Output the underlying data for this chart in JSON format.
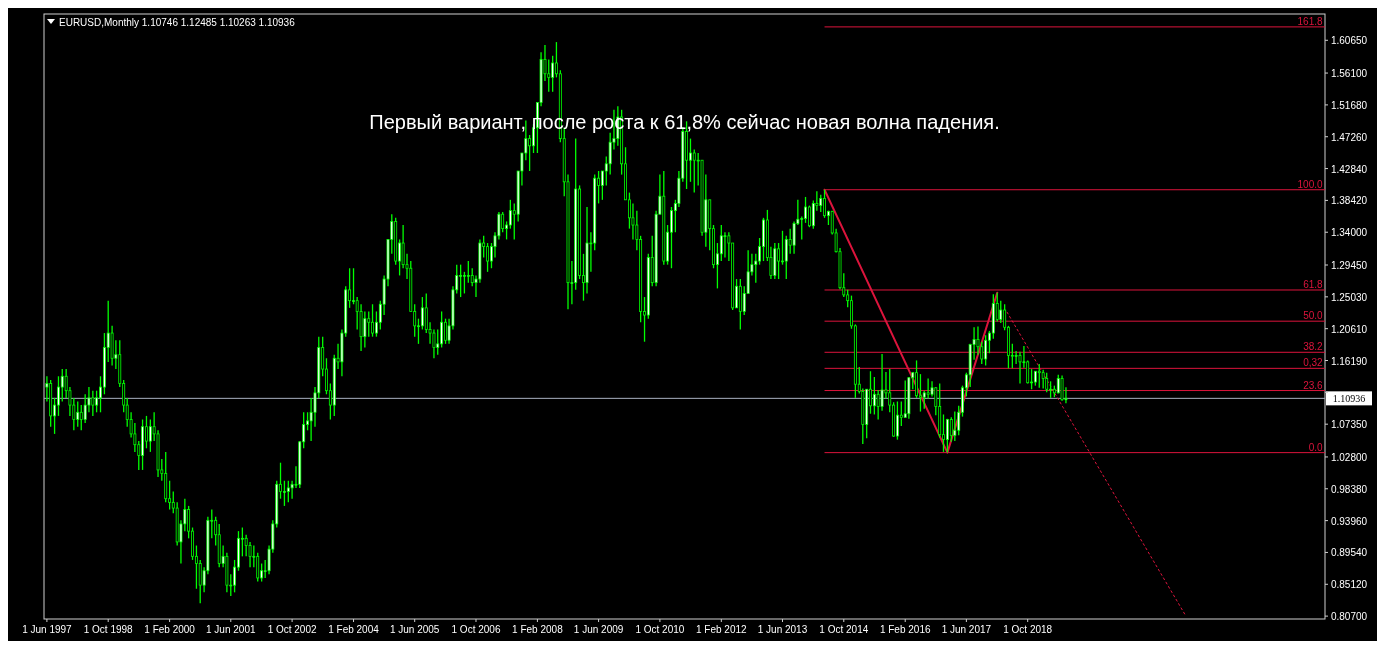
{
  "chart_data": {
    "type": "candlestick",
    "title": "EURUSD,Monthly  1.10746 1.12485 1.10263 1.10936",
    "annotations": [
      "Первый вариант, после роста к 61,8% сейчас новая волна падения.",
      {
        "text": "161.8",
        "x": "2025-03",
        "y": 1.6251
      },
      {
        "text": "100.0",
        "x": "2025-03",
        "y": 1.399
      },
      {
        "text": "61.8",
        "x": "2025-03",
        "y": 1.2598
      },
      {
        "text": "50.0",
        "x": "2025-03",
        "y": 1.2165
      },
      {
        "text": "38.2",
        "x": "2025-03",
        "y": 1.1733
      },
      {
        "text": "0,32",
        "x": "2025-03",
        "y": 1.151
      },
      {
        "text": "23.6",
        "x": "2025-03",
        "y": 1.1202
      },
      {
        "text": "0.0",
        "x": "2025-03",
        "y": 1.034
      }
    ],
    "color": "#00ff00",
    "x": [
      "1997-06",
      "1997-07",
      "1997-08",
      "1997-09",
      "1997-10",
      "1997-11",
      "1997-12",
      "1998-01",
      "1998-02",
      "1998-03",
      "1998-04",
      "1998-05",
      "1998-06",
      "1998-07",
      "1998-08",
      "1998-09",
      "1998-10",
      "1998-11",
      "1998-12",
      "1999-01",
      "1999-02",
      "1999-03",
      "1999-04",
      "1999-05",
      "1999-06",
      "1999-07",
      "1999-08",
      "1999-09",
      "1999-10",
      "1999-11",
      "1999-12",
      "2000-01",
      "2000-02",
      "2000-03",
      "2000-04",
      "2000-05",
      "2000-06",
      "2000-07",
      "2000-08",
      "2000-09",
      "2000-10",
      "2000-11",
      "2000-12",
      "2001-01",
      "2001-02",
      "2001-03",
      "2001-04",
      "2001-05",
      "2001-06",
      "2001-07",
      "2001-08",
      "2001-09",
      "2001-10",
      "2001-11",
      "2001-12",
      "2002-01",
      "2002-02",
      "2002-03",
      "2002-04",
      "2002-05",
      "2002-06",
      "2002-07",
      "2002-08",
      "2002-09",
      "2002-10",
      "2002-11",
      "2002-12",
      "2003-01",
      "2003-02",
      "2003-03",
      "2003-04",
      "2003-05",
      "2003-06",
      "2003-07",
      "2003-08",
      "2003-09",
      "2003-10",
      "2003-11",
      "2003-12",
      "2004-01",
      "2004-02",
      "2004-03",
      "2004-04",
      "2004-05",
      "2004-06",
      "2004-07",
      "2004-08",
      "2004-09",
      "2004-10",
      "2004-11",
      "2004-12",
      "2005-01",
      "2005-02",
      "2005-03",
      "2005-04",
      "2005-05",
      "2005-06",
      "2005-07",
      "2005-08",
      "2005-09",
      "2005-10",
      "2005-11",
      "2005-12",
      "2006-01",
      "2006-02",
      "2006-03",
      "2006-04",
      "2006-05",
      "2006-06",
      "2006-07",
      "2006-08",
      "2006-09",
      "2006-10",
      "2006-11",
      "2006-12",
      "2007-01",
      "2007-02",
      "2007-03",
      "2007-04",
      "2007-05",
      "2007-06",
      "2007-07",
      "2007-08",
      "2007-09",
      "2007-10",
      "2007-11",
      "2007-12",
      "2008-01",
      "2008-02",
      "2008-03",
      "2008-04",
      "2008-05",
      "2008-06",
      "2008-07",
      "2008-08",
      "2008-09",
      "2008-10",
      "2008-11",
      "2008-12",
      "2009-01",
      "2009-02",
      "2009-03",
      "2009-04",
      "2009-05",
      "2009-06",
      "2009-07",
      "2009-08",
      "2009-09",
      "2009-10",
      "2009-11",
      "2009-12",
      "2010-01",
      "2010-02",
      "2010-03",
      "2010-04",
      "2010-05",
      "2010-06",
      "2010-07",
      "2010-08",
      "2010-09",
      "2010-10",
      "2010-11",
      "2010-12",
      "2011-01",
      "2011-02",
      "2011-03",
      "2011-04",
      "2011-05",
      "2011-06",
      "2011-07",
      "2011-08",
      "2011-09",
      "2011-10",
      "2011-11",
      "2011-12",
      "2012-01",
      "2012-02",
      "2012-03",
      "2012-04",
      "2012-05",
      "2012-06",
      "2012-07",
      "2012-08",
      "2012-09",
      "2012-10",
      "2012-11",
      "2012-12",
      "2013-01",
      "2013-02",
      "2013-03",
      "2013-04",
      "2013-05",
      "2013-06",
      "2013-07",
      "2013-08",
      "2013-09",
      "2013-10",
      "2013-11",
      "2013-12",
      "2014-01",
      "2014-02",
      "2014-03",
      "2014-04",
      "2014-05",
      "2014-06",
      "2014-07",
      "2014-08",
      "2014-09",
      "2014-10",
      "2014-11",
      "2014-12",
      "2015-01",
      "2015-02",
      "2015-03",
      "2015-04",
      "2015-05",
      "2015-06",
      "2015-07",
      "2015-08",
      "2015-09",
      "2015-10",
      "2015-11",
      "2015-12",
      "2016-01",
      "2016-02",
      "2016-03",
      "2016-04",
      "2016-05",
      "2016-06",
      "2016-07",
      "2016-08",
      "2016-09",
      "2016-10",
      "2016-11",
      "2016-12",
      "2017-01",
      "2017-02",
      "2017-03",
      "2017-04",
      "2017-05",
      "2017-06",
      "2017-07",
      "2017-08",
      "2017-09",
      "2017-10",
      "2017-11",
      "2017-12",
      "2018-01",
      "2018-02",
      "2018-03",
      "2018-04",
      "2018-05",
      "2018-06",
      "2018-07",
      "2018-08",
      "2018-09",
      "2018-10",
      "2018-11",
      "2018-12",
      "2019-01",
      "2019-02",
      "2019-03",
      "2019-04",
      "2019-05",
      "2019-06",
      "2019-07",
      "2019-08"
    ],
    "ohlc": [
      [
        1.125,
        1.14,
        1.105,
        1.13
      ],
      [
        1.13,
        1.135,
        1.07,
        1.085
      ],
      [
        1.085,
        1.11,
        1.06,
        1.1
      ],
      [
        1.1,
        1.14,
        1.085,
        1.125
      ],
      [
        1.125,
        1.15,
        1.105,
        1.14
      ],
      [
        1.14,
        1.15,
        1.11,
        1.12
      ],
      [
        1.12,
        1.125,
        1.085,
        1.1
      ],
      [
        1.1,
        1.11,
        1.065,
        1.08
      ],
      [
        1.08,
        1.105,
        1.07,
        1.09
      ],
      [
        1.09,
        1.1,
        1.065,
        1.08
      ],
      [
        1.08,
        1.115,
        1.075,
        1.1
      ],
      [
        1.1,
        1.125,
        1.09,
        1.11
      ],
      [
        1.11,
        1.12,
        1.085,
        1.1
      ],
      [
        1.1,
        1.12,
        1.09,
        1.11
      ],
      [
        1.11,
        1.14,
        1.09,
        1.125
      ],
      [
        1.125,
        1.2,
        1.115,
        1.18
      ],
      [
        1.18,
        1.245,
        1.16,
        1.2
      ],
      [
        1.2,
        1.21,
        1.155,
        1.165
      ],
      [
        1.165,
        1.19,
        1.15,
        1.17
      ],
      [
        1.17,
        1.19,
        1.125,
        1.13
      ],
      [
        1.13,
        1.135,
        1.09,
        1.1
      ],
      [
        1.1,
        1.11,
        1.07,
        1.08
      ],
      [
        1.08,
        1.09,
        1.055,
        1.06
      ],
      [
        1.06,
        1.075,
        1.035,
        1.045
      ],
      [
        1.045,
        1.05,
        1.01,
        1.03
      ],
      [
        1.03,
        1.08,
        1.01,
        1.07
      ],
      [
        1.07,
        1.085,
        1.04,
        1.05
      ],
      [
        1.05,
        1.08,
        1.035,
        1.07
      ],
      [
        1.07,
        1.09,
        1.05,
        1.06
      ],
      [
        1.06,
        1.065,
        1.0,
        1.01
      ],
      [
        1.01,
        1.025,
        0.995,
        1.005
      ],
      [
        1.005,
        1.035,
        0.965,
        0.97
      ],
      [
        0.97,
        0.995,
        0.955,
        0.965
      ],
      [
        0.965,
        0.98,
        0.95,
        0.957
      ],
      [
        0.957,
        0.965,
        0.905,
        0.91
      ],
      [
        0.91,
        0.94,
        0.88,
        0.935
      ],
      [
        0.935,
        0.97,
        0.925,
        0.955
      ],
      [
        0.955,
        0.96,
        0.915,
        0.925
      ],
      [
        0.925,
        0.93,
        0.885,
        0.89
      ],
      [
        0.89,
        0.905,
        0.845,
        0.88
      ],
      [
        0.88,
        0.885,
        0.825,
        0.85
      ],
      [
        0.85,
        0.875,
        0.84,
        0.87
      ],
      [
        0.87,
        0.945,
        0.865,
        0.94
      ],
      [
        0.94,
        0.955,
        0.915,
        0.94
      ],
      [
        0.94,
        0.945,
        0.905,
        0.92
      ],
      [
        0.92,
        0.935,
        0.875,
        0.88
      ],
      [
        0.88,
        0.905,
        0.875,
        0.89
      ],
      [
        0.89,
        0.895,
        0.84,
        0.85
      ],
      [
        0.85,
        0.865,
        0.835,
        0.85
      ],
      [
        0.85,
        0.885,
        0.84,
        0.875
      ],
      [
        0.875,
        0.925,
        0.87,
        0.915
      ],
      [
        0.915,
        0.93,
        0.89,
        0.915
      ],
      [
        0.915,
        0.92,
        0.89,
        0.905
      ],
      [
        0.905,
        0.91,
        0.875,
        0.89
      ],
      [
        0.89,
        0.905,
        0.875,
        0.89
      ],
      [
        0.89,
        0.895,
        0.855,
        0.86
      ],
      [
        0.86,
        0.88,
        0.855,
        0.87
      ],
      [
        0.87,
        0.885,
        0.86,
        0.87
      ],
      [
        0.87,
        0.905,
        0.865,
        0.9
      ],
      [
        0.9,
        0.94,
        0.895,
        0.935
      ],
      [
        0.935,
        0.995,
        0.93,
        0.99
      ],
      [
        0.99,
        1.02,
        0.97,
        0.98
      ],
      [
        0.98,
        0.995,
        0.96,
        0.98
      ],
      [
        0.98,
        0.995,
        0.965,
        0.985
      ],
      [
        0.985,
        0.995,
        0.97,
        0.99
      ],
      [
        0.99,
        1.015,
        0.985,
        0.99
      ],
      [
        0.99,
        1.05,
        0.985,
        1.049
      ],
      [
        1.049,
        1.09,
        1.04,
        1.073
      ],
      [
        1.073,
        1.09,
        1.065,
        1.078
      ],
      [
        1.078,
        1.11,
        1.05,
        1.09
      ],
      [
        1.09,
        1.125,
        1.07,
        1.117
      ],
      [
        1.117,
        1.195,
        1.11,
        1.18
      ],
      [
        1.18,
        1.195,
        1.14,
        1.15
      ],
      [
        1.15,
        1.165,
        1.115,
        1.12
      ],
      [
        1.12,
        1.13,
        1.08,
        1.1
      ],
      [
        1.1,
        1.17,
        1.085,
        1.165
      ],
      [
        1.165,
        1.185,
        1.15,
        1.16
      ],
      [
        1.16,
        1.205,
        1.14,
        1.2
      ],
      [
        1.2,
        1.265,
        1.195,
        1.26
      ],
      [
        1.26,
        1.29,
        1.235,
        1.245
      ],
      [
        1.245,
        1.29,
        1.24,
        1.245
      ],
      [
        1.245,
        1.25,
        1.205,
        1.23
      ],
      [
        1.23,
        1.24,
        1.175,
        1.195
      ],
      [
        1.195,
        1.23,
        1.18,
        1.22
      ],
      [
        1.22,
        1.23,
        1.195,
        1.215
      ],
      [
        1.215,
        1.24,
        1.195,
        1.2
      ],
      [
        1.2,
        1.23,
        1.195,
        1.215
      ],
      [
        1.215,
        1.245,
        1.205,
        1.24
      ],
      [
        1.24,
        1.28,
        1.225,
        1.275
      ],
      [
        1.275,
        1.33,
        1.265,
        1.33
      ],
      [
        1.33,
        1.365,
        1.31,
        1.355
      ],
      [
        1.355,
        1.36,
        1.295,
        1.3
      ],
      [
        1.3,
        1.33,
        1.28,
        1.325
      ],
      [
        1.325,
        1.35,
        1.29,
        1.295
      ],
      [
        1.295,
        1.31,
        1.275,
        1.29
      ],
      [
        1.29,
        1.3,
        1.23,
        1.23
      ],
      [
        1.23,
        1.24,
        1.195,
        1.21
      ],
      [
        1.21,
        1.22,
        1.185,
        1.21
      ],
      [
        1.21,
        1.25,
        1.205,
        1.235
      ],
      [
        1.235,
        1.255,
        1.2,
        1.205
      ],
      [
        1.205,
        1.215,
        1.185,
        1.2
      ],
      [
        1.2,
        1.205,
        1.165,
        1.18
      ],
      [
        1.18,
        1.205,
        1.17,
        1.185
      ],
      [
        1.185,
        1.23,
        1.18,
        1.215
      ],
      [
        1.215,
        1.22,
        1.185,
        1.19
      ],
      [
        1.19,
        1.22,
        1.185,
        1.21
      ],
      [
        1.21,
        1.265,
        1.205,
        1.26
      ],
      [
        1.26,
        1.295,
        1.255,
        1.28
      ],
      [
        1.28,
        1.295,
        1.25,
        1.28
      ],
      [
        1.28,
        1.285,
        1.255,
        1.28
      ],
      [
        1.28,
        1.3,
        1.27,
        1.28
      ],
      [
        1.28,
        1.29,
        1.265,
        1.27
      ],
      [
        1.27,
        1.28,
        1.25,
        1.275
      ],
      [
        1.275,
        1.33,
        1.27,
        1.325
      ],
      [
        1.325,
        1.335,
        1.305,
        1.32
      ],
      [
        1.32,
        1.325,
        1.285,
        1.3
      ],
      [
        1.3,
        1.325,
        1.29,
        1.32
      ],
      [
        1.32,
        1.34,
        1.305,
        1.335
      ],
      [
        1.335,
        1.368,
        1.33,
        1.365
      ],
      [
        1.365,
        1.368,
        1.34,
        1.345
      ],
      [
        1.345,
        1.355,
        1.33,
        1.35
      ],
      [
        1.35,
        1.385,
        1.345,
        1.37
      ],
      [
        1.37,
        1.38,
        1.33,
        1.365
      ],
      [
        1.365,
        1.425,
        1.355,
        1.425
      ],
      [
        1.425,
        1.45,
        1.405,
        1.45
      ],
      [
        1.45,
        1.495,
        1.44,
        1.47
      ],
      [
        1.47,
        1.475,
        1.425,
        1.46
      ],
      [
        1.46,
        1.49,
        1.45,
        1.485
      ],
      [
        1.485,
        1.52,
        1.45,
        1.52
      ],
      [
        1.52,
        1.59,
        1.515,
        1.58
      ],
      [
        1.58,
        1.6,
        1.55,
        1.56
      ],
      [
        1.56,
        1.58,
        1.535,
        1.555
      ],
      [
        1.555,
        1.585,
        1.535,
        1.575
      ],
      [
        1.575,
        1.604,
        1.555,
        1.56
      ],
      [
        1.56,
        1.565,
        1.465,
        1.47
      ],
      [
        1.47,
        1.485,
        1.39,
        1.41
      ],
      [
        1.41,
        1.42,
        1.233,
        1.27
      ],
      [
        1.27,
        1.3,
        1.24,
        1.27
      ],
      [
        1.27,
        1.47,
        1.26,
        1.4
      ],
      [
        1.4,
        1.405,
        1.275,
        1.28
      ],
      [
        1.28,
        1.31,
        1.245,
        1.27
      ],
      [
        1.27,
        1.375,
        1.255,
        1.325
      ],
      [
        1.325,
        1.34,
        1.285,
        1.325
      ],
      [
        1.325,
        1.42,
        1.315,
        1.415
      ],
      [
        1.415,
        1.425,
        1.38,
        1.405
      ],
      [
        1.405,
        1.425,
        1.385,
        1.425
      ],
      [
        1.425,
        1.445,
        1.405,
        1.435
      ],
      [
        1.435,
        1.478,
        1.42,
        1.465
      ],
      [
        1.465,
        1.51,
        1.455,
        1.47
      ],
      [
        1.47,
        1.515,
        1.46,
        1.5
      ],
      [
        1.5,
        1.51,
        1.42,
        1.435
      ],
      [
        1.435,
        1.458,
        1.385,
        1.385
      ],
      [
        1.385,
        1.395,
        1.345,
        1.36
      ],
      [
        1.36,
        1.38,
        1.33,
        1.35
      ],
      [
        1.35,
        1.37,
        1.315,
        1.33
      ],
      [
        1.33,
        1.335,
        1.215,
        1.23
      ],
      [
        1.23,
        1.25,
        1.188,
        1.225
      ],
      [
        1.225,
        1.31,
        1.22,
        1.305
      ],
      [
        1.305,
        1.335,
        1.265,
        1.27
      ],
      [
        1.27,
        1.37,
        1.265,
        1.365
      ],
      [
        1.365,
        1.42,
        1.365,
        1.39
      ],
      [
        1.39,
        1.425,
        1.295,
        1.3
      ],
      [
        1.3,
        1.35,
        1.295,
        1.34
      ],
      [
        1.34,
        1.375,
        1.29,
        1.37
      ],
      [
        1.37,
        1.385,
        1.34,
        1.38
      ],
      [
        1.38,
        1.425,
        1.375,
        1.415
      ],
      [
        1.415,
        1.486,
        1.41,
        1.48
      ],
      [
        1.48,
        1.494,
        1.4,
        1.44
      ],
      [
        1.44,
        1.47,
        1.41,
        1.45
      ],
      [
        1.45,
        1.455,
        1.395,
        1.44
      ],
      [
        1.44,
        1.45,
        1.405,
        1.44
      ],
      [
        1.44,
        1.44,
        1.335,
        1.34
      ],
      [
        1.34,
        1.42,
        1.32,
        1.385
      ],
      [
        1.385,
        1.385,
        1.315,
        1.345
      ],
      [
        1.345,
        1.35,
        1.29,
        1.295
      ],
      [
        1.295,
        1.325,
        1.262,
        1.31
      ],
      [
        1.31,
        1.35,
        1.3,
        1.335
      ],
      [
        1.335,
        1.34,
        1.305,
        1.335
      ],
      [
        1.335,
        1.34,
        1.3,
        1.325
      ],
      [
        1.325,
        1.325,
        1.232,
        1.235
      ],
      [
        1.235,
        1.275,
        1.235,
        1.265
      ],
      [
        1.265,
        1.275,
        1.205,
        1.23
      ],
      [
        1.23,
        1.265,
        1.225,
        1.255
      ],
      [
        1.255,
        1.315,
        1.255,
        1.285
      ],
      [
        1.285,
        1.31,
        1.28,
        1.295
      ],
      [
        1.295,
        1.31,
        1.27,
        1.3
      ],
      [
        1.3,
        1.332,
        1.295,
        1.32
      ],
      [
        1.32,
        1.36,
        1.3,
        1.357
      ],
      [
        1.357,
        1.371,
        1.3,
        1.305
      ],
      [
        1.305,
        1.32,
        1.275,
        1.28
      ],
      [
        1.28,
        1.325,
        1.275,
        1.317
      ],
      [
        1.317,
        1.325,
        1.275,
        1.3
      ],
      [
        1.3,
        1.342,
        1.295,
        1.3
      ],
      [
        1.3,
        1.335,
        1.275,
        1.33
      ],
      [
        1.33,
        1.345,
        1.31,
        1.322
      ],
      [
        1.322,
        1.355,
        1.31,
        1.352
      ],
      [
        1.352,
        1.385,
        1.35,
        1.358
      ],
      [
        1.358,
        1.362,
        1.33,
        1.359
      ],
      [
        1.359,
        1.389,
        1.353,
        1.375
      ],
      [
        1.375,
        1.377,
        1.347,
        1.349
      ],
      [
        1.349,
        1.384,
        1.345,
        1.38
      ],
      [
        1.38,
        1.397,
        1.37,
        1.377
      ],
      [
        1.377,
        1.392,
        1.368,
        1.387
      ],
      [
        1.387,
        1.399,
        1.36,
        1.363
      ],
      [
        1.363,
        1.37,
        1.35,
        1.369
      ],
      [
        1.369,
        1.37,
        1.337,
        1.339
      ],
      [
        1.339,
        1.345,
        1.312,
        1.313
      ],
      [
        1.313,
        1.318,
        1.261,
        1.263
      ],
      [
        1.263,
        1.283,
        1.25,
        1.253
      ],
      [
        1.253,
        1.26,
        1.236,
        1.245
      ],
      [
        1.245,
        1.252,
        1.206,
        1.21
      ],
      [
        1.21,
        1.212,
        1.11,
        1.129
      ],
      [
        1.129,
        1.153,
        1.116,
        1.119
      ],
      [
        1.119,
        1.123,
        1.046,
        1.073
      ],
      [
        1.073,
        1.122,
        1.054,
        1.122
      ],
      [
        1.122,
        1.147,
        1.088,
        1.099
      ],
      [
        1.099,
        1.139,
        1.087,
        1.115
      ],
      [
        1.115,
        1.121,
        1.08,
        1.098
      ],
      [
        1.098,
        1.171,
        1.092,
        1.121
      ],
      [
        1.121,
        1.146,
        1.109,
        1.117
      ],
      [
        1.117,
        1.15,
        1.09,
        1.1
      ],
      [
        1.1,
        1.104,
        1.056,
        1.057
      ],
      [
        1.057,
        1.105,
        1.052,
        1.086
      ],
      [
        1.086,
        1.105,
        1.071,
        1.083
      ],
      [
        1.083,
        1.134,
        1.082,
        1.088
      ],
      [
        1.088,
        1.139,
        1.081,
        1.138
      ],
      [
        1.138,
        1.146,
        1.122,
        1.145
      ],
      [
        1.145,
        1.162,
        1.11,
        1.113
      ],
      [
        1.113,
        1.143,
        1.091,
        1.111
      ],
      [
        1.111,
        1.12,
        1.095,
        1.117
      ],
      [
        1.117,
        1.137,
        1.109,
        1.115
      ],
      [
        1.115,
        1.133,
        1.112,
        1.124
      ],
      [
        1.124,
        1.125,
        1.086,
        1.098
      ],
      [
        1.098,
        1.13,
        1.055,
        1.059
      ],
      [
        1.059,
        1.087,
        1.035,
        1.052
      ],
      [
        1.052,
        1.081,
        1.034,
        1.08
      ],
      [
        1.08,
        1.083,
        1.049,
        1.058
      ],
      [
        1.058,
        1.091,
        1.05,
        1.065
      ],
      [
        1.065,
        1.099,
        1.058,
        1.09
      ],
      [
        1.09,
        1.127,
        1.084,
        1.124
      ],
      [
        1.124,
        1.145,
        1.112,
        1.142
      ],
      [
        1.142,
        1.185,
        1.125,
        1.184
      ],
      [
        1.184,
        1.208,
        1.163,
        1.191
      ],
      [
        1.191,
        1.209,
        1.17,
        1.181
      ],
      [
        1.181,
        1.188,
        1.157,
        1.164
      ],
      [
        1.164,
        1.197,
        1.155,
        1.19
      ],
      [
        1.19,
        1.203,
        1.172,
        1.2
      ],
      [
        1.2,
        1.254,
        1.192,
        1.241
      ],
      [
        1.241,
        1.256,
        1.216,
        1.219
      ],
      [
        1.219,
        1.245,
        1.214,
        1.232
      ],
      [
        1.232,
        1.24,
        1.204,
        1.208
      ],
      [
        1.208,
        1.21,
        1.151,
        1.169
      ],
      [
        1.169,
        1.185,
        1.151,
        1.168
      ],
      [
        1.168,
        1.175,
        1.157,
        1.169
      ],
      [
        1.169,
        1.174,
        1.13,
        1.16
      ],
      [
        1.16,
        1.182,
        1.152,
        1.16
      ],
      [
        1.16,
        1.162,
        1.13,
        1.131
      ],
      [
        1.131,
        1.15,
        1.122,
        1.132
      ],
      [
        1.132,
        1.147,
        1.127,
        1.147
      ],
      [
        1.147,
        1.157,
        1.124,
        1.145
      ],
      [
        1.145,
        1.149,
        1.123,
        1.137
      ],
      [
        1.137,
        1.145,
        1.118,
        1.122
      ],
      [
        1.122,
        1.133,
        1.11,
        1.122
      ],
      [
        1.122,
        1.127,
        1.111,
        1.117
      ],
      [
        1.117,
        1.142,
        1.116,
        1.137
      ],
      [
        1.137,
        1.141,
        1.106,
        1.10746
      ],
      [
        1.10746,
        1.12485,
        1.10263,
        1.10936
      ]
    ],
    "series": [
      {
        "type": "line",
        "color": "#dc143c",
        "x": [
          "2014-05",
          "2017-01",
          "2018-02"
        ],
        "values": [
          1.399,
          1.034,
          1.256
        ]
      },
      {
        "type": "line",
        "line_style": "dotted",
        "color": "#dc143c",
        "x": [
          "2018-04-20",
          "2022-03"
        ],
        "values": [
          1.229,
          0.81
        ]
      }
    ],
    "ref_lines": [
      {
        "axis": "y",
        "value": 1.6251,
        "color": "#dc143c"
      },
      {
        "axis": "y",
        "value": 1.399,
        "color": "#dc143c"
      },
      {
        "axis": "y",
        "value": 1.2598,
        "color": "#dc143c"
      },
      {
        "axis": "y",
        "value": 1.2165,
        "color": "#dc143c"
      },
      {
        "axis": "y",
        "value": 1.1733,
        "color": "#dc143c"
      },
      {
        "axis": "y",
        "value": 1.151,
        "color": "#dc143c"
      },
      {
        "axis": "y",
        "value": 1.1202,
        "color": "#dc143c"
      },
      {
        "axis": "y",
        "value": 1.034,
        "color": "#dc143c"
      },
      {
        "axis": "y",
        "value": 1.10936,
        "label": "1.10936",
        "color": "#a8b0c0"
      }
    ],
    "xlim": [
      "1997-05-09",
      "2025-03-20"
    ],
    "xticks": [
      {
        "value": "1997-06",
        "label": "1 Jun 1997"
      },
      {
        "value": "1998-10",
        "label": "1 Oct 1998"
      },
      {
        "value": "2000-02",
        "label": "1 Feb 2000"
      },
      {
        "value": "2001-06",
        "label": "1 Jun 2001"
      },
      {
        "value": "2002-10",
        "label": "1 Oct 2002"
      },
      {
        "value": "2004-02",
        "label": "1 Feb 2004"
      },
      {
        "value": "2005-06",
        "label": "1 Jun 2005"
      },
      {
        "value": "2006-10",
        "label": "1 Oct 2006"
      },
      {
        "value": "2008-02",
        "label": "1 Feb 2008"
      },
      {
        "value": "2009-06",
        "label": "1 Jun 2009"
      },
      {
        "value": "2010-10",
        "label": "1 Oct 2010"
      },
      {
        "value": "2012-02",
        "label": "1 Feb 2012"
      },
      {
        "value": "2013-06",
        "label": "1 Jun 2013"
      },
      {
        "value": "2014-10",
        "label": "1 Oct 2014"
      },
      {
        "value": "2016-02",
        "label": "1 Feb 2016"
      },
      {
        "value": "2017-06",
        "label": "1 Jun 2017"
      },
      {
        "value": "2018-10",
        "label": "1 Oct 2018"
      }
    ],
    "ylim": [
      0.803,
      1.643
    ],
    "yticks": [
      {
        "value": 1.6065,
        "label": "1.60650"
      },
      {
        "value": 1.561,
        "label": "1.56100"
      },
      {
        "value": 1.5168,
        "label": "1.51680"
      },
      {
        "value": 1.4726,
        "label": "1.47260"
      },
      {
        "value": 1.4284,
        "label": "1.42840"
      },
      {
        "value": 1.3842,
        "label": "1.38420"
      },
      {
        "value": 1.34,
        "label": "1.34000"
      },
      {
        "value": 1.2945,
        "label": "1.29450"
      },
      {
        "value": 1.2503,
        "label": "1.25030"
      },
      {
        "value": 1.2061,
        "label": "1.20610"
      },
      {
        "value": 1.1619,
        "label": "1.16190"
      },
      {
        "value": 1.1177,
        "label": null
      },
      {
        "value": 1.0735,
        "label": "1.07350"
      },
      {
        "value": 1.028,
        "label": "1.02800"
      },
      {
        "value": 0.9838,
        "label": "0.98380"
      },
      {
        "value": 0.9396,
        "label": "0.93960"
      },
      {
        "value": 0.8954,
        "label": "0.89540"
      },
      {
        "value": 0.8512,
        "label": "0.85120"
      },
      {
        "value": 0.807,
        "label": "0.80700"
      }
    ]
  }
}
